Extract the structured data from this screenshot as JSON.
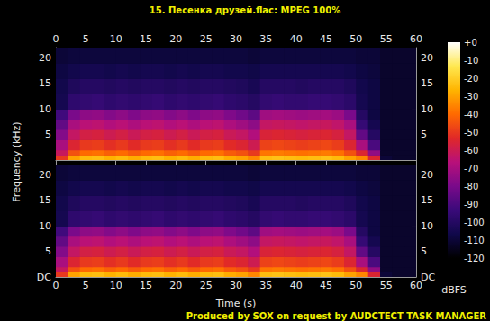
{
  "chart_data": {
    "type": "spectrogram",
    "title": "15. Песенка друзей.flac: MPEG 100%",
    "xlabel": "Time (s)",
    "ylabel": "Frequency (kHz)",
    "xlim": [
      0,
      60
    ],
    "xticks": [
      0,
      5,
      10,
      15,
      20,
      25,
      30,
      35,
      40,
      45,
      50,
      55,
      60
    ],
    "ylim": [
      0,
      22.05
    ],
    "time_bins": [
      0,
      2,
      4,
      6,
      8,
      10,
      12,
      14,
      16,
      18,
      20,
      22,
      24,
      26,
      28,
      30,
      32,
      34,
      36,
      38,
      40,
      42,
      44,
      46,
      48,
      50,
      52,
      54,
      56,
      58,
      60
    ],
    "freq_bins": [
      0,
      1,
      2,
      4,
      6,
      8,
      10,
      13,
      16,
      19,
      22.05
    ],
    "channels": [
      {
        "yticks": [
          5,
          10,
          15,
          20
        ],
        "db": [
          [
            -50,
            -30,
            -25,
            -24,
            -27,
            -25,
            -28,
            -25,
            -24,
            -27,
            -25,
            -28,
            -25,
            -24,
            -28,
            -30,
            -35,
            -24,
            -23,
            -24,
            -25,
            -24,
            -23,
            -25,
            -30,
            -35,
            -55,
            -110,
            -112,
            -112
          ],
          [
            -62,
            -45,
            -40,
            -39,
            -42,
            -40,
            -43,
            -40,
            -39,
            -42,
            -40,
            -43,
            -40,
            -39,
            -43,
            -45,
            -50,
            -38,
            -37,
            -38,
            -39,
            -38,
            -37,
            -39,
            -45,
            -55,
            -75,
            -112,
            -112,
            -112
          ],
          [
            -70,
            -55,
            -50,
            -49,
            -52,
            -50,
            -53,
            -50,
            -49,
            -52,
            -50,
            -53,
            -50,
            -49,
            -53,
            -55,
            -60,
            -48,
            -47,
            -48,
            -49,
            -48,
            -47,
            -49,
            -55,
            -70,
            -90,
            -112,
            -112,
            -112
          ],
          [
            -78,
            -63,
            -58,
            -57,
            -60,
            -58,
            -61,
            -58,
            -57,
            -60,
            -58,
            -61,
            -58,
            -57,
            -61,
            -63,
            -68,
            -56,
            -55,
            -56,
            -57,
            -56,
            -55,
            -57,
            -63,
            -85,
            -100,
            -112,
            -112,
            -112
          ],
          [
            -85,
            -70,
            -66,
            -65,
            -68,
            -66,
            -69,
            -66,
            -65,
            -68,
            -66,
            -69,
            -66,
            -65,
            -69,
            -72,
            -76,
            -63,
            -62,
            -63,
            -64,
            -63,
            -62,
            -64,
            -70,
            -95,
            -105,
            -112,
            -112,
            -112
          ],
          [
            -92,
            -80,
            -76,
            -75,
            -78,
            -76,
            -79,
            -76,
            -75,
            -78,
            -76,
            -79,
            -76,
            -75,
            -79,
            -82,
            -86,
            -72,
            -71,
            -72,
            -73,
            -72,
            -71,
            -73,
            -80,
            -100,
            -108,
            -112,
            -112,
            -112
          ],
          [
            -105,
            -97,
            -96,
            -95,
            -97,
            -96,
            -97,
            -96,
            -95,
            -97,
            -96,
            -97,
            -96,
            -95,
            -97,
            -98,
            -100,
            -96,
            -95,
            -96,
            -96,
            -95,
            -95,
            -96,
            -98,
            -105,
            -108,
            -112,
            -112,
            -112
          ],
          [
            -106,
            -102,
            -100,
            -100,
            -101,
            -100,
            -101,
            -100,
            -100,
            -101,
            -100,
            -101,
            -100,
            -100,
            -101,
            -102,
            -104,
            -100,
            -100,
            -100,
            -101,
            -100,
            -100,
            -100,
            -102,
            -106,
            -108,
            -112,
            -112,
            -112
          ],
          [
            -108,
            -106,
            -105,
            -105,
            -106,
            -105,
            -106,
            -105,
            -105,
            -106,
            -105,
            -106,
            -105,
            -105,
            -106,
            -106,
            -107,
            -105,
            -105,
            -105,
            -105,
            -105,
            -105,
            -105,
            -106,
            -108,
            -109,
            -112,
            -112,
            -112
          ],
          [
            -110,
            -109,
            -109,
            -109,
            -109,
            -109,
            -109,
            -109,
            -109,
            -109,
            -109,
            -109,
            -109,
            -109,
            -109,
            -109,
            -110,
            -109,
            -109,
            -109,
            -109,
            -109,
            -109,
            -109,
            -109,
            -110,
            -110,
            -112,
            -112,
            -112
          ]
        ]
      },
      {
        "yticks": [
          {
            "value": 0,
            "label": "DC"
          },
          5,
          10,
          15,
          20
        ],
        "db": [
          [
            -50,
            -30,
            -25,
            -24,
            -27,
            -25,
            -28,
            -25,
            -24,
            -27,
            -25,
            -28,
            -25,
            -24,
            -28,
            -30,
            -35,
            -24,
            -23,
            -24,
            -25,
            -24,
            -23,
            -25,
            -30,
            -35,
            -55,
            -110,
            -112,
            -112
          ],
          [
            -62,
            -45,
            -40,
            -39,
            -42,
            -40,
            -43,
            -40,
            -39,
            -42,
            -40,
            -43,
            -40,
            -39,
            -43,
            -45,
            -50,
            -38,
            -37,
            -38,
            -39,
            -38,
            -37,
            -39,
            -45,
            -55,
            -75,
            -112,
            -112,
            -112
          ],
          [
            -70,
            -55,
            -50,
            -49,
            -52,
            -50,
            -53,
            -50,
            -49,
            -52,
            -50,
            -53,
            -50,
            -49,
            -53,
            -55,
            -60,
            -48,
            -47,
            -48,
            -49,
            -48,
            -47,
            -49,
            -55,
            -70,
            -90,
            -112,
            -112,
            -112
          ],
          [
            -78,
            -63,
            -58,
            -57,
            -60,
            -58,
            -61,
            -58,
            -57,
            -60,
            -58,
            -61,
            -58,
            -57,
            -61,
            -63,
            -68,
            -56,
            -55,
            -56,
            -57,
            -56,
            -55,
            -57,
            -63,
            -85,
            -100,
            -112,
            -112,
            -112
          ],
          [
            -85,
            -70,
            -66,
            -65,
            -68,
            -66,
            -69,
            -66,
            -65,
            -68,
            -66,
            -69,
            -66,
            -65,
            -69,
            -72,
            -76,
            -63,
            -62,
            -63,
            -64,
            -63,
            -62,
            -64,
            -70,
            -95,
            -105,
            -112,
            -112,
            -112
          ],
          [
            -92,
            -80,
            -76,
            -75,
            -78,
            -76,
            -79,
            -76,
            -75,
            -78,
            -76,
            -79,
            -76,
            -75,
            -79,
            -82,
            -86,
            -72,
            -71,
            -72,
            -73,
            -72,
            -71,
            -73,
            -80,
            -100,
            -108,
            -112,
            -112,
            -112
          ],
          [
            -105,
            -97,
            -96,
            -95,
            -97,
            -96,
            -97,
            -96,
            -95,
            -97,
            -96,
            -97,
            -96,
            -95,
            -97,
            -98,
            -100,
            -96,
            -95,
            -96,
            -96,
            -95,
            -95,
            -96,
            -98,
            -105,
            -108,
            -112,
            -112,
            -112
          ],
          [
            -106,
            -102,
            -100,
            -100,
            -101,
            -100,
            -101,
            -100,
            -100,
            -101,
            -100,
            -101,
            -100,
            -100,
            -101,
            -102,
            -104,
            -100,
            -100,
            -100,
            -101,
            -100,
            -100,
            -100,
            -102,
            -106,
            -108,
            -112,
            -112,
            -112
          ],
          [
            -108,
            -106,
            -105,
            -105,
            -106,
            -105,
            -106,
            -105,
            -105,
            -106,
            -105,
            -106,
            -105,
            -105,
            -106,
            -106,
            -107,
            -105,
            -105,
            -105,
            -105,
            -105,
            -105,
            -105,
            -106,
            -108,
            -109,
            -112,
            -112,
            -112
          ],
          [
            -110,
            -109,
            -109,
            -109,
            -109,
            -109,
            -109,
            -109,
            -109,
            -109,
            -109,
            -109,
            -109,
            -109,
            -109,
            -109,
            -110,
            -109,
            -109,
            -109,
            -109,
            -109,
            -109,
            -109,
            -109,
            -110,
            -110,
            -112,
            -112,
            -112
          ]
        ]
      }
    ],
    "colorbar": {
      "range": [
        -120,
        0
      ],
      "ticks": [
        {
          "value": 0,
          "label": "+0"
        },
        -10,
        -20,
        -30,
        -40,
        -50,
        -60,
        -70,
        -80,
        -90,
        -100,
        -110,
        -120
      ],
      "label": "dBFS"
    },
    "annotation": "Produced by SOX on request by AUDCTECT TASK MANAGER"
  }
}
